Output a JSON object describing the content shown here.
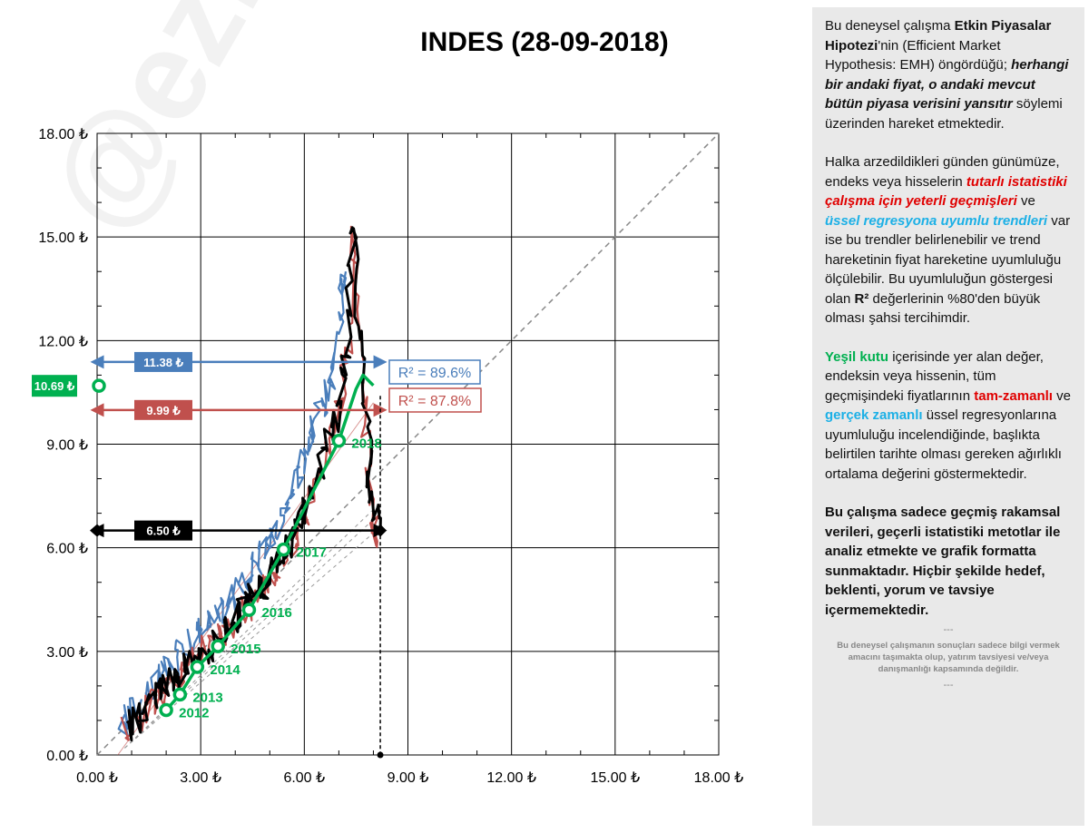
{
  "title": "INDES (28-09-2018)",
  "watermark": "@ezisahansel",
  "chart_data": {
    "type": "scatter",
    "title": "INDES (28-09-2018)",
    "xlim": [
      0,
      18
    ],
    "ylim": [
      0,
      18
    ],
    "x_ticks": [
      "0.00 ₺",
      "3.00 ₺",
      "6.00 ₺",
      "9.00 ₺",
      "12.00 ₺",
      "15.00 ₺",
      "18.00 ₺"
    ],
    "y_ticks": [
      "0.00 ₺",
      "3.00 ₺",
      "6.00 ₺",
      "9.00 ₺",
      "12.00 ₺",
      "15.00 ₺",
      "18.00 ₺"
    ],
    "grid": true,
    "colors": {
      "blue": "#4a7ebb",
      "red": "#c0504d",
      "black": "#000000",
      "green": "#00b050",
      "diag": "#888888"
    },
    "series": [
      {
        "name": "blue",
        "points": [
          [
            0.7,
            0.8
          ],
          [
            1.0,
            1.2
          ],
          [
            1.3,
            1.6
          ],
          [
            1.6,
            2.0
          ],
          [
            1.9,
            2.3
          ],
          [
            2.2,
            2.6
          ],
          [
            2.5,
            3.0
          ],
          [
            2.8,
            3.3
          ],
          [
            3.1,
            3.7
          ],
          [
            3.4,
            3.9
          ],
          [
            3.7,
            4.3
          ],
          [
            4.0,
            4.6
          ],
          [
            4.3,
            5.0
          ],
          [
            4.6,
            5.5
          ],
          [
            4.9,
            6.0
          ],
          [
            5.2,
            6.4
          ],
          [
            5.5,
            7.2
          ],
          [
            5.8,
            8.0
          ],
          [
            6.0,
            8.6
          ],
          [
            6.2,
            9.4
          ],
          [
            6.5,
            10.0
          ],
          [
            6.8,
            11.0
          ],
          [
            7.0,
            11.8
          ],
          [
            7.1,
            13.5
          ],
          [
            7.2,
            14.0
          ]
        ]
      },
      {
        "name": "red",
        "points": [
          [
            0.8,
            0.8
          ],
          [
            1.2,
            1.0
          ],
          [
            1.5,
            1.4
          ],
          [
            1.8,
            1.7
          ],
          [
            2.1,
            2.0
          ],
          [
            2.4,
            2.3
          ],
          [
            2.7,
            2.6
          ],
          [
            3.0,
            2.9
          ],
          [
            3.3,
            3.2
          ],
          [
            3.6,
            3.5
          ],
          [
            3.9,
            3.8
          ],
          [
            4.2,
            4.1
          ],
          [
            4.5,
            4.4
          ],
          [
            4.8,
            4.8
          ],
          [
            5.1,
            5.2
          ],
          [
            5.4,
            5.7
          ],
          [
            5.7,
            6.3
          ],
          [
            6.0,
            7.0
          ],
          [
            6.3,
            7.7
          ],
          [
            6.6,
            8.5
          ],
          [
            6.9,
            9.5
          ],
          [
            7.1,
            10.5
          ],
          [
            7.3,
            12.0
          ],
          [
            7.4,
            15.3
          ],
          [
            7.6,
            12.0
          ],
          [
            7.8,
            9.0
          ],
          [
            8.0,
            7.0
          ],
          [
            8.1,
            6.0
          ]
        ]
      },
      {
        "name": "black",
        "points": [
          [
            0.9,
            0.7
          ],
          [
            1.2,
            1.2
          ],
          [
            1.5,
            1.4
          ],
          [
            1.8,
            1.8
          ],
          [
            2.1,
            2.1
          ],
          [
            2.4,
            2.4
          ],
          [
            2.7,
            2.7
          ],
          [
            3.0,
            3.0
          ],
          [
            3.3,
            3.2
          ],
          [
            3.6,
            3.6
          ],
          [
            3.9,
            3.9
          ],
          [
            4.2,
            4.2
          ],
          [
            4.5,
            4.5
          ],
          [
            4.8,
            4.9
          ],
          [
            5.1,
            5.3
          ],
          [
            5.4,
            5.8
          ],
          [
            5.7,
            6.4
          ],
          [
            6.0,
            7.1
          ],
          [
            6.3,
            7.8
          ],
          [
            6.6,
            8.7
          ],
          [
            6.9,
            9.6
          ],
          [
            7.1,
            10.6
          ],
          [
            7.3,
            12.5
          ],
          [
            7.4,
            15.4
          ],
          [
            7.6,
            12.2
          ],
          [
            7.8,
            9.5
          ],
          [
            8.0,
            7.3
          ],
          [
            8.2,
            6.5
          ]
        ]
      },
      {
        "name": "green",
        "points": [
          [
            2.0,
            1.3
          ],
          [
            2.4,
            1.75
          ],
          [
            2.9,
            2.55
          ],
          [
            3.5,
            3.15
          ],
          [
            4.4,
            4.2
          ],
          [
            5.4,
            5.95
          ],
          [
            7.0,
            9.1
          ],
          [
            7.5,
            10.6
          ],
          [
            7.7,
            11.0
          ],
          [
            8.0,
            10.7
          ]
        ]
      }
    ],
    "year_labels": [
      {
        "x": 2.0,
        "y": 1.3,
        "label": "2012"
      },
      {
        "x": 2.4,
        "y": 1.75,
        "label": "2013"
      },
      {
        "x": 2.9,
        "y": 2.55,
        "label": "2014"
      },
      {
        "x": 3.5,
        "y": 3.15,
        "label": "2015"
      },
      {
        "x": 4.4,
        "y": 4.2,
        "label": "2016"
      },
      {
        "x": 5.4,
        "y": 5.95,
        "label": "2017"
      },
      {
        "x": 7.0,
        "y": 9.1,
        "label": "2018"
      }
    ],
    "levels": [
      {
        "value": 11.38,
        "label": "11.38 ₺",
        "color": "#4a7ebb"
      },
      {
        "value": 9.99,
        "label": "9.99 ₺",
        "color": "#c0504d"
      },
      {
        "value": 6.5,
        "label": "6.50 ₺",
        "color": "#000000"
      }
    ],
    "green_value": {
      "value": 10.69,
      "label": "10.69 ₺"
    },
    "current_x": 8.2,
    "r2_blue": "R² = 89.6%",
    "r2_red": "R² = 87.8%"
  },
  "sidebar": {
    "p1_a": "Bu deneysel çalışma ",
    "p1_b": "Etkin Piyasalar Hipotezi",
    "p1_c": "'nin (Efficient Market Hypothesis: EMH) öngördüğü; ",
    "p1_d": "herhangi bir andaki fiyat, o andaki mevcut bütün piyasa verisini yansıtır",
    "p1_e": "  söylemi üzerinden hareket etmektedir.",
    "p2_a": "Halka arzedildikleri günden günümüze, endeks veya hisselerin ",
    "p2_b": "tutarlı istatistiki çalışma için yeterli geçmişleri",
    "p2_c": " ve ",
    "p2_d": "üssel regresyona uyumlu trendleri",
    "p2_e": " var ise bu trendler belirlenebilir ve trend hareketinin fiyat hareketine uyumluluğu ölçülebilir. Bu uyumluluğun göstergesi olan ",
    "p2_f": "R²",
    "p2_g": " değerlerinin %80'den büyük olması şahsi tercihimdir.",
    "p3_a": "Yeşil kutu",
    "p3_b": " içerisinde yer alan değer, endeksin veya hissenin, tüm geçmişindeki fiyatlarının ",
    "p3_c": "tam-zamanlı",
    "p3_d": " ve ",
    "p3_e": "gerçek zamanlı",
    "p3_f": " üssel regresyonlarına uyumluluğu incelendiğinde, başlıkta belirtilen tarihte olması gereken ağırlıklı ortalama değerini göstermektedir.",
    "p4": "Bu çalışma sadece geçmiş rakamsal verileri, geçerli istatistiki metotlar ile  analiz etmekte ve grafik formatta sunmaktadır. Hiçbir şekilde hedef, beklenti, yorum ve tavsiye içermemektedir.",
    "sep1": "---",
    "foot": "Bu deneysel çalışmanın sonuçları sadece bilgi vermek amacını taşımakta olup, yatırım tavsiyesi ve/veya danışmanlığı kapsamında değildir.",
    "sep2": "---"
  }
}
